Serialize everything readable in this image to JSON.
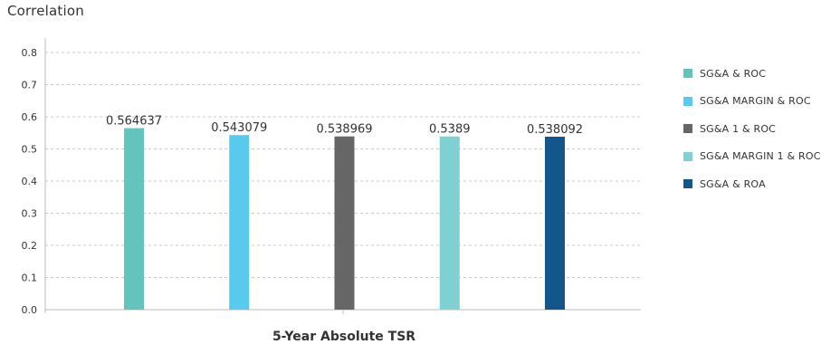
{
  "chart_data": {
    "type": "bar",
    "title": "Correlation",
    "xlabel": "5-Year Absolute TSR",
    "ylabel": "",
    "ylim": [
      0,
      0.8
    ],
    "yticks": [
      "0.0",
      "0.1",
      "0.2",
      "0.3",
      "0.4",
      "0.5",
      "0.6",
      "0.7",
      "0.8"
    ],
    "grid": true,
    "legend_position": "right",
    "series": [
      {
        "name": "SG&A & ROC",
        "value": 0.564637,
        "label": "0.564637",
        "color": "#62C4BD"
      },
      {
        "name": "SG&A MARGIN & ROC",
        "value": 0.543079,
        "label": "0.543079",
        "color": "#57CAEE"
      },
      {
        "name": "SG&A 1 & ROC",
        "value": 0.538969,
        "label": "0.538969",
        "color": "#666666"
      },
      {
        "name": "SG&A MARGIN 1 & ROC",
        "value": 0.5389,
        "label": "0.5389",
        "color": "#7FD0D2"
      },
      {
        "name": "SG&A & ROA",
        "value": 0.538092,
        "label": "0.538092",
        "color": "#12568A"
      }
    ]
  }
}
